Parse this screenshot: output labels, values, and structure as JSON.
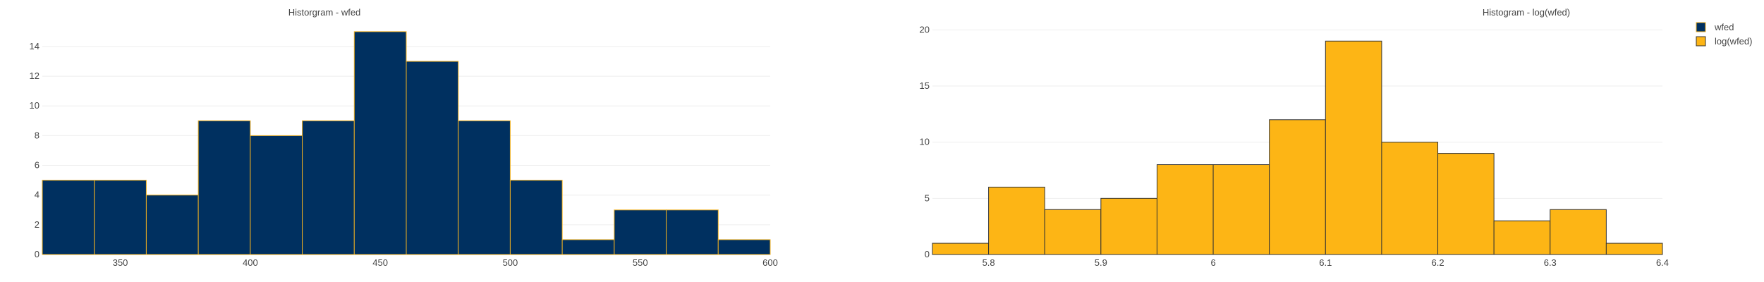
{
  "chart_data": [
    {
      "type": "bar",
      "title": "Historgram - wfed",
      "xlabel": "",
      "ylabel": "",
      "xlim": [
        320,
        600
      ],
      "ylim": [
        0,
        15.8
      ],
      "xticks": [
        350,
        400,
        450,
        500,
        550,
        600
      ],
      "yticks": [
        0,
        2,
        4,
        6,
        8,
        10,
        12,
        14
      ],
      "bins": [
        {
          "x0": 320,
          "x1": 340,
          "count": 5
        },
        {
          "x0": 340,
          "x1": 360,
          "count": 5
        },
        {
          "x0": 360,
          "x1": 380,
          "count": 4
        },
        {
          "x0": 380,
          "x1": 400,
          "count": 9
        },
        {
          "x0": 400,
          "x1": 420,
          "count": 8
        },
        {
          "x0": 420,
          "x1": 440,
          "count": 9
        },
        {
          "x0": 440,
          "x1": 460,
          "count": 15
        },
        {
          "x0": 460,
          "x1": 480,
          "count": 13
        },
        {
          "x0": 480,
          "x1": 500,
          "count": 9
        },
        {
          "x0": 500,
          "x1": 520,
          "count": 5
        },
        {
          "x0": 520,
          "x1": 540,
          "count": 1
        },
        {
          "x0": 540,
          "x1": 560,
          "count": 3
        },
        {
          "x0": 560,
          "x1": 580,
          "count": 3
        },
        {
          "x0": 580,
          "x1": 600,
          "count": 1
        }
      ],
      "fill": "#003060",
      "edge": "#f0b020",
      "grid": true
    },
    {
      "type": "bar",
      "title": "Histogram - log(wfed)",
      "xlabel": "",
      "ylabel": "",
      "xlim": [
        5.75,
        6.4
      ],
      "ylim": [
        0,
        20.9
      ],
      "xticks": [
        5.8,
        5.9,
        6,
        6.1,
        6.2,
        6.3,
        6.4
      ],
      "yticks": [
        0,
        5,
        10,
        15,
        20
      ],
      "bins": [
        {
          "x0": 5.75,
          "x1": 5.8,
          "count": 1
        },
        {
          "x0": 5.8,
          "x1": 5.85,
          "count": 6
        },
        {
          "x0": 5.85,
          "x1": 5.9,
          "count": 4
        },
        {
          "x0": 5.9,
          "x1": 5.95,
          "count": 5
        },
        {
          "x0": 5.95,
          "x1": 6.0,
          "count": 8
        },
        {
          "x0": 6.0,
          "x1": 6.05,
          "count": 8
        },
        {
          "x0": 6.05,
          "x1": 6.1,
          "count": 12
        },
        {
          "x0": 6.1,
          "x1": 6.15,
          "count": 19
        },
        {
          "x0": 6.15,
          "x1": 6.2,
          "count": 10
        },
        {
          "x0": 6.2,
          "x1": 6.25,
          "count": 9
        },
        {
          "x0": 6.25,
          "x1": 6.3,
          "count": 3
        },
        {
          "x0": 6.3,
          "x1": 6.35,
          "count": 4
        },
        {
          "x0": 6.35,
          "x1": 6.4,
          "count": 1
        }
      ],
      "fill": "#fdb515",
      "edge": "#333333",
      "grid": true
    }
  ],
  "legend": {
    "placement": "top-right",
    "items": [
      {
        "label": "wfed",
        "color": "#003060",
        "edge": "#f0b020"
      },
      {
        "label": "log(wfed)",
        "color": "#fdb515",
        "edge": "#333333"
      }
    ]
  }
}
